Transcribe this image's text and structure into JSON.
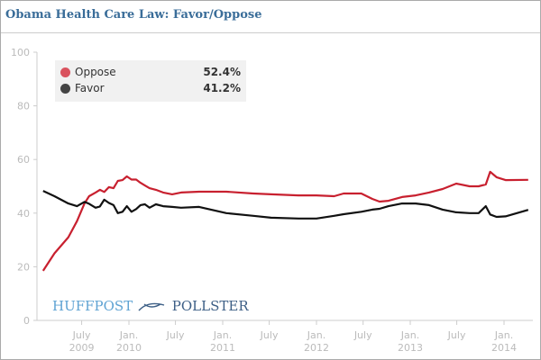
{
  "chart_data": {
    "type": "line",
    "title": "Obama Health Care Law: Favor/Oppose",
    "ylim": [
      0,
      100
    ],
    "yticks": [
      0,
      20,
      40,
      60,
      80,
      100
    ],
    "xticks": [
      {
        "date": "2009-07-01",
        "line1": "July",
        "line2": "2009"
      },
      {
        "date": "2010-01-01",
        "line1": "Jan.",
        "line2": "2010"
      },
      {
        "date": "2010-07-01",
        "line1": "July",
        "line2": ""
      },
      {
        "date": "2011-01-01",
        "line1": "Jan.",
        "line2": "2011"
      },
      {
        "date": "2011-07-01",
        "line1": "July",
        "line2": ""
      },
      {
        "date": "2012-01-01",
        "line1": "Jan.",
        "line2": "2012"
      },
      {
        "date": "2012-07-01",
        "line1": "July",
        "line2": ""
      },
      {
        "date": "2013-01-01",
        "line1": "Jan.",
        "line2": "2013"
      },
      {
        "date": "2013-07-01",
        "line1": "July",
        "line2": ""
      },
      {
        "date": "2014-01-01",
        "line1": "Jan.",
        "line2": "2014"
      }
    ],
    "grid": false,
    "legend_placement": "top-left",
    "x": [
      "2009-02-01",
      "2009-03-17",
      "2009-05-10",
      "2009-06-13",
      "2009-07-12",
      "2009-07-30",
      "2009-08-24",
      "2009-09-10",
      "2009-09-27",
      "2009-10-15",
      "2009-11-02",
      "2009-11-19",
      "2009-12-07",
      "2009-12-24",
      "2010-01-11",
      "2010-01-29",
      "2010-02-15",
      "2010-03-04",
      "2010-03-22",
      "2010-04-16",
      "2010-05-14",
      "2010-06-18",
      "2010-07-23",
      "2010-10-01",
      "2011-01-15",
      "2011-04-30",
      "2011-07-08",
      "2011-10-23",
      "2012-01-01",
      "2012-03-10",
      "2012-04-16",
      "2012-06-24",
      "2012-08-06",
      "2012-09-03",
      "2012-10-08",
      "2012-11-30",
      "2013-01-22",
      "2013-03-15",
      "2013-05-07",
      "2013-06-29",
      "2013-08-20",
      "2013-09-24",
      "2013-10-22",
      "2013-11-08",
      "2013-12-03",
      "2014-01-07",
      "2014-04-05"
    ],
    "series": [
      {
        "name": "Oppose",
        "color": "#c8202f",
        "latest": "52.4%",
        "values": [
          18.5,
          25,
          31,
          37,
          43.6,
          46.3,
          47.7,
          48.7,
          47.9,
          49.7,
          49.3,
          52,
          52.3,
          53.7,
          52.5,
          52.5,
          51.3,
          50.3,
          49.3,
          48.7,
          47.7,
          47,
          47.7,
          48,
          48,
          47.3,
          47,
          46.6,
          46.6,
          46.3,
          47.3,
          47.3,
          45.3,
          44.3,
          44.6,
          46,
          46.6,
          47.7,
          49,
          51,
          50,
          50,
          50.7,
          55.4,
          53.4,
          52.3,
          52.4
        ]
      },
      {
        "name": "Favor",
        "color": "#111111",
        "latest": "41.2%",
        "values": [
          48.3,
          46.3,
          43.6,
          42.6,
          44.2,
          43.5,
          42,
          42.5,
          45,
          43.8,
          43,
          40,
          40.5,
          42.6,
          40.5,
          41.5,
          43,
          43.3,
          42,
          43.3,
          42.6,
          42.3,
          42,
          42.3,
          40,
          39,
          38.3,
          38,
          38,
          39,
          39.6,
          40.5,
          41.3,
          41.6,
          42.6,
          43.6,
          43.6,
          43,
          41.3,
          40.3,
          40,
          40,
          42.6,
          39.5,
          38.6,
          38.8,
          41.2
        ]
      }
    ]
  },
  "legend": {
    "items": [
      {
        "label": "Oppose",
        "value": "52.4%",
        "color": "#d9525e"
      },
      {
        "label": "Favor",
        "value": "41.2%",
        "color": "#444444"
      }
    ]
  },
  "logo": {
    "part1": "HUFFPOST",
    "part2": "POLLSTER"
  }
}
